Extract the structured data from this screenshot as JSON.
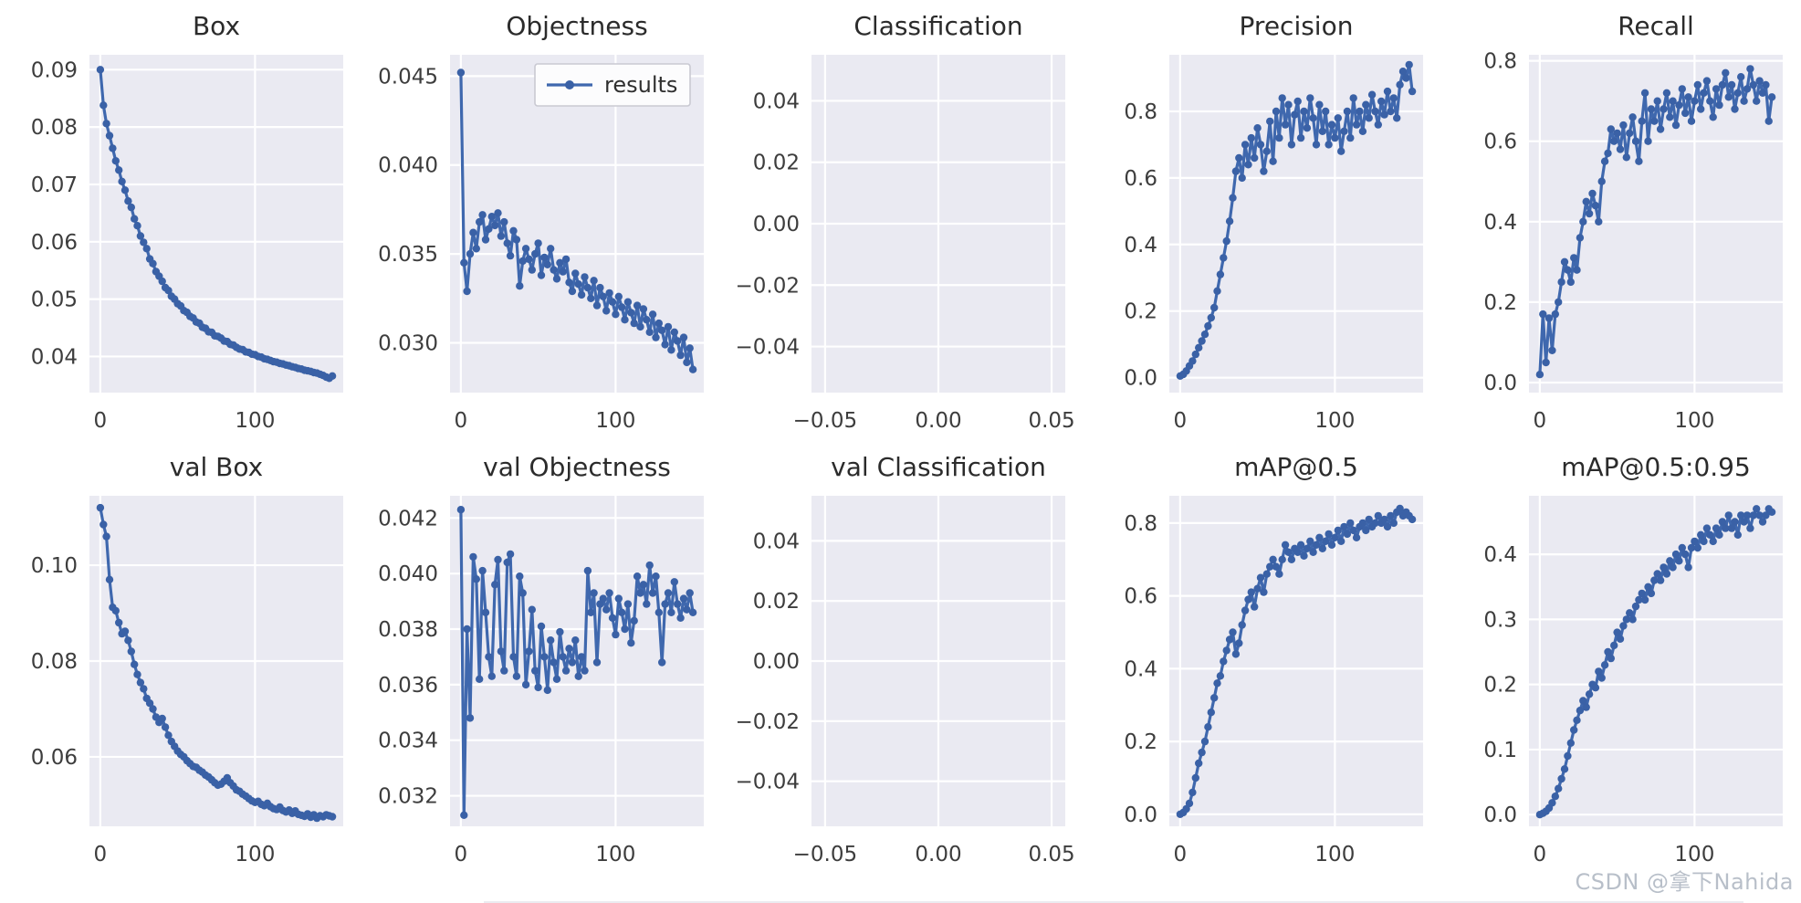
{
  "figure": {
    "background": "#ffffff",
    "axes_background": "#eaeaf2",
    "grid_color": "#ffffff",
    "line_color": "#3f68ae",
    "marker_color": "#3a61a6",
    "tick_label_color": "#3d3d3d",
    "title_color": "#2b2b2b"
  },
  "legend": {
    "label": "results"
  },
  "watermark": {
    "text": "CSDN @拿下Nahida",
    "color": "#b8bfc9"
  },
  "chart_data": [
    {
      "type": "line",
      "title": "Box",
      "row": 0,
      "col": 0,
      "xlabel": "",
      "ylabel": "",
      "grid": true,
      "xlim": [
        -7,
        157
      ],
      "ylim": [
        0.0337,
        0.0926
      ],
      "x_ticks": [
        {
          "v": 0,
          "label": "0"
        },
        {
          "v": 100,
          "label": "100"
        }
      ],
      "y_ticks": [
        {
          "v": 0.04,
          "label": "0.04"
        },
        {
          "v": 0.05,
          "label": "0.05"
        },
        {
          "v": 0.06,
          "label": "0.06"
        },
        {
          "v": 0.07,
          "label": "0.07"
        },
        {
          "v": 0.08,
          "label": "0.08"
        },
        {
          "v": 0.09,
          "label": "0.09"
        }
      ],
      "x_start": 0,
      "x_step": 2,
      "values": [
        0.09,
        0.0838,
        0.0806,
        0.0785,
        0.0763,
        0.0741,
        0.0725,
        0.0705,
        0.069,
        0.0671,
        0.066,
        0.064,
        0.0628,
        0.061,
        0.0599,
        0.0588,
        0.057,
        0.0562,
        0.0548,
        0.054,
        0.0531,
        0.052,
        0.0515,
        0.0505,
        0.05,
        0.0492,
        0.0488,
        0.048,
        0.0477,
        0.047,
        0.0467,
        0.046,
        0.0458,
        0.0451,
        0.0449,
        0.0443,
        0.0442,
        0.0436,
        0.0435,
        0.0432,
        0.0427,
        0.0426,
        0.0421,
        0.042,
        0.0416,
        0.0413,
        0.0412,
        0.0408,
        0.0407,
        0.0404,
        0.0403,
        0.04,
        0.0399,
        0.0396,
        0.0395,
        0.0393,
        0.0391,
        0.039,
        0.0388,
        0.0387,
        0.0385,
        0.0384,
        0.0382,
        0.0381,
        0.0379,
        0.0378,
        0.0376,
        0.0375,
        0.0374,
        0.0372,
        0.0371,
        0.0369,
        0.0367,
        0.0364,
        0.0362,
        0.0366
      ]
    },
    {
      "type": "line",
      "title": "Objectness",
      "row": 0,
      "col": 1,
      "legend": true,
      "xlabel": "",
      "ylabel": "",
      "grid": true,
      "xlim": [
        -7,
        157
      ],
      "ylim": [
        0.0272,
        0.0462
      ],
      "x_ticks": [
        {
          "v": 0,
          "label": "0"
        },
        {
          "v": 100,
          "label": "100"
        }
      ],
      "y_ticks": [
        {
          "v": 0.03,
          "label": "0.030"
        },
        {
          "v": 0.035,
          "label": "0.035"
        },
        {
          "v": 0.04,
          "label": "0.040"
        },
        {
          "v": 0.045,
          "label": "0.045"
        }
      ],
      "x_start": 0,
      "x_step": 2,
      "values": [
        0.0452,
        0.0345,
        0.0329,
        0.035,
        0.0362,
        0.0353,
        0.0368,
        0.0372,
        0.0358,
        0.0364,
        0.0371,
        0.0366,
        0.0373,
        0.036,
        0.0368,
        0.0356,
        0.0349,
        0.0363,
        0.0358,
        0.0332,
        0.0346,
        0.0353,
        0.0347,
        0.0341,
        0.035,
        0.0356,
        0.0338,
        0.0348,
        0.0344,
        0.0353,
        0.0341,
        0.0336,
        0.0345,
        0.034,
        0.0347,
        0.0334,
        0.0329,
        0.0339,
        0.0333,
        0.0327,
        0.0337,
        0.0331,
        0.0325,
        0.0335,
        0.0321,
        0.0331,
        0.0326,
        0.0318,
        0.0328,
        0.0323,
        0.0316,
        0.0326,
        0.032,
        0.0313,
        0.0323,
        0.0317,
        0.0311,
        0.0321,
        0.0309,
        0.0319,
        0.0313,
        0.0306,
        0.0316,
        0.0303,
        0.0311,
        0.0307,
        0.0299,
        0.0309,
        0.0296,
        0.0306,
        0.0301,
        0.0293,
        0.0303,
        0.0289,
        0.0297,
        0.0285
      ]
    },
    {
      "type": "line",
      "title": "Classification",
      "row": 0,
      "col": 2,
      "xlabel": "",
      "ylabel": "",
      "grid": true,
      "xlim": [
        -0.056,
        0.056
      ],
      "ylim": [
        -0.055,
        0.055
      ],
      "x_ticks": [
        {
          "v": -0.05,
          "label": "−0.05"
        },
        {
          "v": 0.0,
          "label": "0.00"
        },
        {
          "v": 0.05,
          "label": "0.05"
        }
      ],
      "y_ticks": [
        {
          "v": -0.04,
          "label": "−0.04"
        },
        {
          "v": -0.02,
          "label": "−0.02"
        },
        {
          "v": 0.0,
          "label": "0.00"
        },
        {
          "v": 0.02,
          "label": "0.02"
        },
        {
          "v": 0.04,
          "label": "0.04"
        }
      ],
      "x_start": 0,
      "x_step": 2,
      "values": []
    },
    {
      "type": "line",
      "title": "Precision",
      "row": 0,
      "col": 3,
      "xlabel": "",
      "ylabel": "",
      "grid": true,
      "xlim": [
        -7,
        157
      ],
      "ylim": [
        -0.045,
        0.97
      ],
      "x_ticks": [
        {
          "v": 0,
          "label": "0"
        },
        {
          "v": 100,
          "label": "100"
        }
      ],
      "y_ticks": [
        {
          "v": 0.0,
          "label": "0.0"
        },
        {
          "v": 0.2,
          "label": "0.2"
        },
        {
          "v": 0.4,
          "label": "0.4"
        },
        {
          "v": 0.6,
          "label": "0.6"
        },
        {
          "v": 0.8,
          "label": "0.8"
        }
      ],
      "x_start": 0,
      "x_step": 2,
      "values": [
        0.005,
        0.01,
        0.02,
        0.035,
        0.05,
        0.07,
        0.09,
        0.11,
        0.13,
        0.155,
        0.18,
        0.21,
        0.26,
        0.31,
        0.36,
        0.41,
        0.47,
        0.54,
        0.62,
        0.66,
        0.6,
        0.7,
        0.64,
        0.72,
        0.66,
        0.75,
        0.7,
        0.62,
        0.68,
        0.77,
        0.65,
        0.8,
        0.72,
        0.84,
        0.76,
        0.82,
        0.7,
        0.79,
        0.83,
        0.72,
        0.8,
        0.75,
        0.84,
        0.78,
        0.7,
        0.82,
        0.74,
        0.8,
        0.7,
        0.76,
        0.72,
        0.78,
        0.68,
        0.74,
        0.8,
        0.72,
        0.84,
        0.76,
        0.8,
        0.74,
        0.82,
        0.78,
        0.85,
        0.8,
        0.76,
        0.83,
        0.79,
        0.86,
        0.8,
        0.84,
        0.78,
        0.88,
        0.92,
        0.9,
        0.94,
        0.86
      ]
    },
    {
      "type": "line",
      "title": "Recall",
      "row": 0,
      "col": 4,
      "xlabel": "",
      "ylabel": "",
      "grid": true,
      "xlim": [
        -7,
        157
      ],
      "ylim": [
        -0.025,
        0.815
      ],
      "x_ticks": [
        {
          "v": 0,
          "label": "0"
        },
        {
          "v": 100,
          "label": "100"
        }
      ],
      "y_ticks": [
        {
          "v": 0.0,
          "label": "0.0"
        },
        {
          "v": 0.2,
          "label": "0.2"
        },
        {
          "v": 0.4,
          "label": "0.4"
        },
        {
          "v": 0.6,
          "label": "0.6"
        },
        {
          "v": 0.8,
          "label": "0.8"
        }
      ],
      "x_start": 0,
      "x_step": 2,
      "values": [
        0.02,
        0.17,
        0.05,
        0.16,
        0.08,
        0.17,
        0.2,
        0.25,
        0.3,
        0.28,
        0.25,
        0.31,
        0.28,
        0.36,
        0.4,
        0.45,
        0.42,
        0.47,
        0.44,
        0.4,
        0.5,
        0.55,
        0.57,
        0.63,
        0.6,
        0.62,
        0.58,
        0.64,
        0.56,
        0.62,
        0.66,
        0.6,
        0.55,
        0.65,
        0.72,
        0.6,
        0.68,
        0.65,
        0.7,
        0.63,
        0.68,
        0.72,
        0.66,
        0.7,
        0.64,
        0.69,
        0.73,
        0.67,
        0.71,
        0.65,
        0.7,
        0.74,
        0.68,
        0.72,
        0.75,
        0.7,
        0.66,
        0.73,
        0.69,
        0.74,
        0.77,
        0.71,
        0.74,
        0.68,
        0.72,
        0.76,
        0.7,
        0.73,
        0.78,
        0.74,
        0.7,
        0.75,
        0.72,
        0.74,
        0.65,
        0.71
      ]
    },
    {
      "type": "line",
      "title": "val Box",
      "row": 1,
      "col": 0,
      "xlabel": "",
      "ylabel": "",
      "grid": true,
      "xlim": [
        -7,
        157
      ],
      "ylim": [
        0.0455,
        0.1145
      ],
      "x_ticks": [
        {
          "v": 0,
          "label": "0"
        },
        {
          "v": 100,
          "label": "100"
        }
      ],
      "y_ticks": [
        {
          "v": 0.06,
          "label": "0.06"
        },
        {
          "v": 0.08,
          "label": "0.08"
        },
        {
          "v": 0.1,
          "label": "0.10"
        }
      ],
      "x_start": 0,
      "x_step": 2,
      "values": [
        0.112,
        0.1085,
        0.106,
        0.097,
        0.0912,
        0.0905,
        0.088,
        0.0857,
        0.0862,
        0.0843,
        0.082,
        0.0793,
        0.0772,
        0.0755,
        0.0742,
        0.0722,
        0.0712,
        0.07,
        0.0683,
        0.0672,
        0.068,
        0.0662,
        0.0645,
        0.0632,
        0.0622,
        0.0612,
        0.0605,
        0.06,
        0.0592,
        0.0586,
        0.058,
        0.0578,
        0.0572,
        0.0568,
        0.0562,
        0.0558,
        0.0552,
        0.0546,
        0.0541,
        0.0543,
        0.0549,
        0.0556,
        0.0546,
        0.0539,
        0.0531,
        0.0528,
        0.0522,
        0.0518,
        0.0513,
        0.0508,
        0.0505,
        0.0507,
        0.0501,
        0.0498,
        0.0503,
        0.0496,
        0.0492,
        0.049,
        0.0495,
        0.0488,
        0.0485,
        0.0489,
        0.0482,
        0.0487,
        0.048,
        0.0478,
        0.0476,
        0.0481,
        0.0474,
        0.0479,
        0.0472,
        0.0477,
        0.0475,
        0.0479,
        0.0477,
        0.0475
      ]
    },
    {
      "type": "line",
      "title": "val Objectness",
      "row": 1,
      "col": 1,
      "xlabel": "",
      "ylabel": "",
      "grid": true,
      "xlim": [
        -7,
        157
      ],
      "ylim": [
        0.0309,
        0.0428
      ],
      "x_ticks": [
        {
          "v": 0,
          "label": "0"
        },
        {
          "v": 100,
          "label": "100"
        }
      ],
      "y_ticks": [
        {
          "v": 0.032,
          "label": "0.032"
        },
        {
          "v": 0.034,
          "label": "0.034"
        },
        {
          "v": 0.036,
          "label": "0.036"
        },
        {
          "v": 0.038,
          "label": "0.038"
        },
        {
          "v": 0.04,
          "label": "0.040"
        },
        {
          "v": 0.042,
          "label": "0.042"
        }
      ],
      "x_start": 0,
      "x_step": 2,
      "values": [
        0.0423,
        0.0313,
        0.038,
        0.0348,
        0.0406,
        0.0398,
        0.0362,
        0.0401,
        0.0386,
        0.037,
        0.0363,
        0.0396,
        0.0405,
        0.0372,
        0.0365,
        0.0404,
        0.0407,
        0.037,
        0.0363,
        0.0399,
        0.0393,
        0.036,
        0.0372,
        0.0387,
        0.0365,
        0.0359,
        0.0381,
        0.037,
        0.0358,
        0.0376,
        0.0368,
        0.0362,
        0.0379,
        0.037,
        0.0365,
        0.0373,
        0.0368,
        0.0376,
        0.0363,
        0.037,
        0.0365,
        0.0401,
        0.0386,
        0.0393,
        0.0368,
        0.0389,
        0.0391,
        0.0387,
        0.0393,
        0.0384,
        0.0378,
        0.0391,
        0.0386,
        0.038,
        0.0389,
        0.0375,
        0.0383,
        0.0399,
        0.0393,
        0.0396,
        0.0389,
        0.0403,
        0.0393,
        0.0399,
        0.0386,
        0.0368,
        0.0389,
        0.0393,
        0.0386,
        0.0397,
        0.0389,
        0.0384,
        0.0391,
        0.0387,
        0.0393,
        0.0386
      ]
    },
    {
      "type": "line",
      "title": "val Classification",
      "row": 1,
      "col": 2,
      "xlabel": "",
      "ylabel": "",
      "grid": true,
      "xlim": [
        -0.056,
        0.056
      ],
      "ylim": [
        -0.055,
        0.055
      ],
      "x_ticks": [
        {
          "v": -0.05,
          "label": "−0.05"
        },
        {
          "v": 0.0,
          "label": "0.00"
        },
        {
          "v": 0.05,
          "label": "0.05"
        }
      ],
      "y_ticks": [
        {
          "v": -0.04,
          "label": "−0.04"
        },
        {
          "v": -0.02,
          "label": "−0.02"
        },
        {
          "v": 0.0,
          "label": "0.00"
        },
        {
          "v": 0.02,
          "label": "0.02"
        },
        {
          "v": 0.04,
          "label": "0.04"
        }
      ],
      "x_start": 0,
      "x_step": 2,
      "values": []
    },
    {
      "type": "line",
      "title": "mAP@0.5",
      "row": 1,
      "col": 3,
      "xlabel": "",
      "ylabel": "",
      "grid": true,
      "xlim": [
        -7,
        157
      ],
      "ylim": [
        -0.033,
        0.875
      ],
      "x_ticks": [
        {
          "v": 0,
          "label": "0"
        },
        {
          "v": 100,
          "label": "100"
        }
      ],
      "y_ticks": [
        {
          "v": 0.0,
          "label": "0.0"
        },
        {
          "v": 0.2,
          "label": "0.2"
        },
        {
          "v": 0.4,
          "label": "0.4"
        },
        {
          "v": 0.6,
          "label": "0.6"
        },
        {
          "v": 0.8,
          "label": "0.8"
        }
      ],
      "x_start": 0,
      "x_step": 2,
      "values": [
        0.0,
        0.005,
        0.015,
        0.03,
        0.06,
        0.1,
        0.14,
        0.17,
        0.2,
        0.24,
        0.28,
        0.32,
        0.36,
        0.38,
        0.42,
        0.45,
        0.48,
        0.5,
        0.44,
        0.47,
        0.52,
        0.56,
        0.59,
        0.61,
        0.57,
        0.62,
        0.65,
        0.61,
        0.66,
        0.68,
        0.7,
        0.68,
        0.66,
        0.7,
        0.74,
        0.72,
        0.7,
        0.73,
        0.72,
        0.74,
        0.71,
        0.73,
        0.75,
        0.72,
        0.74,
        0.76,
        0.73,
        0.75,
        0.77,
        0.74,
        0.76,
        0.78,
        0.75,
        0.79,
        0.77,
        0.8,
        0.78,
        0.76,
        0.79,
        0.8,
        0.78,
        0.81,
        0.79,
        0.8,
        0.82,
        0.8,
        0.81,
        0.79,
        0.82,
        0.8,
        0.83,
        0.84,
        0.82,
        0.83,
        0.82,
        0.81
      ]
    },
    {
      "type": "line",
      "title": "mAP@0.5:0.95",
      "row": 1,
      "col": 4,
      "xlabel": "",
      "ylabel": "",
      "grid": true,
      "xlim": [
        -7,
        157
      ],
      "ylim": [
        -0.018,
        0.49
      ],
      "x_ticks": [
        {
          "v": 0,
          "label": "0"
        },
        {
          "v": 100,
          "label": "100"
        }
      ],
      "y_ticks": [
        {
          "v": 0.0,
          "label": "0.0"
        },
        {
          "v": 0.1,
          "label": "0.1"
        },
        {
          "v": 0.2,
          "label": "0.2"
        },
        {
          "v": 0.3,
          "label": "0.3"
        },
        {
          "v": 0.4,
          "label": "0.4"
        }
      ],
      "x_start": 0,
      "x_step": 2,
      "values": [
        0.0,
        0.002,
        0.005,
        0.01,
        0.018,
        0.028,
        0.04,
        0.055,
        0.07,
        0.09,
        0.11,
        0.13,
        0.145,
        0.16,
        0.175,
        0.165,
        0.185,
        0.2,
        0.195,
        0.22,
        0.21,
        0.23,
        0.25,
        0.24,
        0.26,
        0.28,
        0.27,
        0.29,
        0.3,
        0.31,
        0.3,
        0.32,
        0.33,
        0.34,
        0.33,
        0.35,
        0.34,
        0.36,
        0.37,
        0.36,
        0.38,
        0.37,
        0.39,
        0.38,
        0.4,
        0.39,
        0.41,
        0.4,
        0.38,
        0.41,
        0.42,
        0.41,
        0.43,
        0.42,
        0.44,
        0.43,
        0.42,
        0.44,
        0.43,
        0.45,
        0.44,
        0.46,
        0.44,
        0.45,
        0.43,
        0.46,
        0.45,
        0.46,
        0.44,
        0.46,
        0.47,
        0.46,
        0.45,
        0.46,
        0.47,
        0.465
      ]
    }
  ]
}
